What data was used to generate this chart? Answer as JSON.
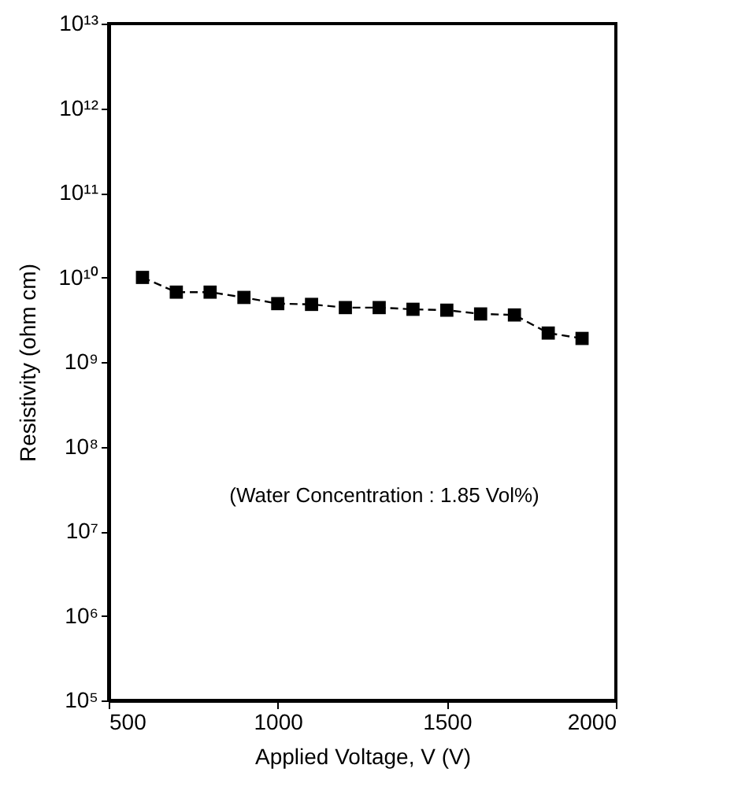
{
  "chart_data": {
    "type": "line",
    "xlabel": "Applied Voltage, V (V)",
    "ylabel": "Resistivity (ohm cm)",
    "x": [
      600,
      700,
      800,
      900,
      1000,
      1100,
      1200,
      1300,
      1400,
      1500,
      1600,
      1700,
      1800,
      1900
    ],
    "series": [
      {
        "color": "#000000",
        "values": [
          10000000000.0,
          6700000000.0,
          6700000000.0,
          5800000000.0,
          4900000000.0,
          4800000000.0,
          4400000000.0,
          4400000000.0,
          4200000000.0,
          4100000000.0,
          3700000000.0,
          3600000000.0,
          2200000000.0,
          1900000000.0
        ]
      }
    ],
    "log": "y",
    "xlim": [
      500,
      2000
    ],
    "xticks": [
      500,
      1000,
      1500,
      2000
    ],
    "ylim": [
      100000.0,
      10000000000000.0
    ],
    "yticks": [
      {
        "value": 100000.0,
        "label": "10⁵"
      },
      {
        "value": 1000000.0,
        "label": "10⁶"
      },
      {
        "value": 10000000.0,
        "label": "10⁷"
      },
      {
        "value": 100000000.0,
        "label": "10⁸"
      },
      {
        "value": 1000000000.0,
        "label": "10⁹"
      },
      {
        "value": 10000000000.0,
        "label": "10¹⁰"
      },
      {
        "value": 100000000000.0,
        "label": "10¹¹"
      },
      {
        "value": 1000000000000.0,
        "label": "10¹²"
      },
      {
        "value": 10000000000000.0,
        "label": "10¹³"
      }
    ],
    "marker": "square",
    "line_style": "dashed",
    "grid": false,
    "annotations": [
      "(Water Concentration : 1.85 Vol%)"
    ]
  }
}
